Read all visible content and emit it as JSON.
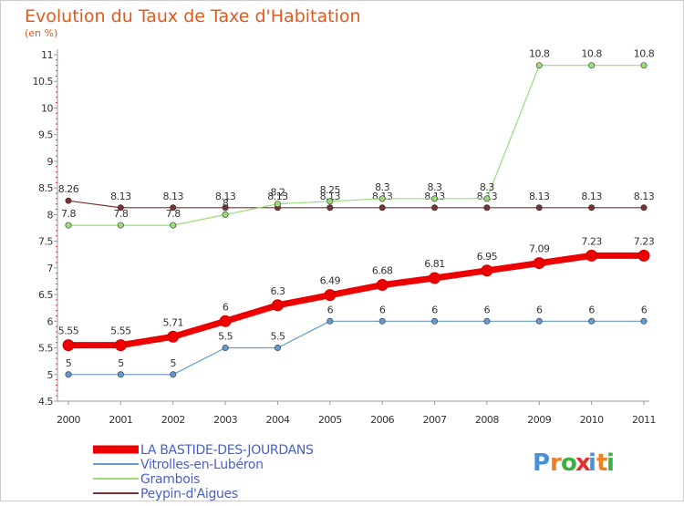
{
  "chart_data": {
    "type": "line",
    "title": "Evolution du Taux de Taxe d'Habitation",
    "subtitle": "(en %)",
    "x": [
      "2000",
      "2001",
      "2002",
      "2003",
      "2004",
      "2005",
      "2006",
      "2007",
      "2008",
      "2009",
      "2010",
      "2011"
    ],
    "ylim": [
      4.5,
      11
    ],
    "yticks": [
      "4.5",
      "5",
      "5.5",
      "6",
      "6.5",
      "7",
      "7.5",
      "8",
      "8.5",
      "9",
      "9.5",
      "10",
      "10.5",
      "11"
    ],
    "grid": false,
    "legend_position": "bottom-left",
    "series": [
      {
        "name": "LA BASTIDE-DES-JOURDANS",
        "color": "#ee0000",
        "values": [
          5.55,
          5.55,
          5.71,
          6,
          6.3,
          6.49,
          6.68,
          6.81,
          6.95,
          7.09,
          7.23,
          7.23
        ],
        "labels": [
          "5.55",
          "5.55",
          "5.71",
          "6",
          "6.3",
          "6.49",
          "6.68",
          "6.81",
          "6.95",
          "7.09",
          "7.23",
          "7.23"
        ]
      },
      {
        "name": "Vitrolles-en-Lubéron",
        "color": "#6699cc",
        "values": [
          5,
          5,
          5,
          5.5,
          5.5,
          6,
          6,
          6,
          6,
          6,
          6,
          6
        ],
        "labels": [
          "5",
          "5",
          "5",
          "5.5",
          "5.5",
          "6",
          "6",
          "6",
          "6",
          "6",
          "6",
          "6"
        ]
      },
      {
        "name": "Grambois",
        "color": "#99dd77",
        "values": [
          7.8,
          7.8,
          7.8,
          8,
          8.2,
          8.25,
          8.3,
          8.3,
          8.3,
          10.8,
          10.8,
          10.8
        ],
        "labels": [
          "7.8",
          "7.8",
          "7.8",
          "8",
          "8.2",
          "8.25",
          "8.3",
          "8.3",
          "8.3",
          "10.8",
          "10.8",
          "10.8"
        ]
      },
      {
        "name": "Peypin-d'Aigues",
        "color": "#773333",
        "values": [
          8.26,
          8.13,
          8.13,
          8.13,
          8.13,
          8.13,
          8.13,
          8.13,
          8.13,
          8.13,
          8.13,
          8.13
        ],
        "labels": [
          "8.26",
          "8.13",
          "8.13",
          "8.13",
          "8.13",
          "8.13",
          "8.13",
          "8.13",
          "8.13",
          "8.13",
          "8.13",
          "8.13"
        ]
      }
    ]
  },
  "logo": {
    "text": "Proxiti",
    "colors": [
      "#4a90d9",
      "#f08020",
      "#3cb043",
      "#e03030"
    ]
  }
}
